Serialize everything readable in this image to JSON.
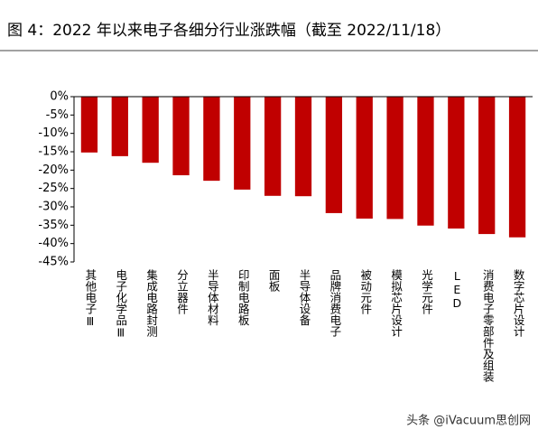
{
  "chart_data": {
    "type": "bar",
    "title": "图 4：2022 年以来电子各细分行业涨跌幅（截至 2022/11/18）",
    "categories": [
      "其他电子Ⅲ",
      "电子化学品Ⅲ",
      "集成电路封测",
      "分立器件",
      "半导体材料",
      "印制电路板",
      "面板",
      "半导体设备",
      "品牌消费电子",
      "被动元件",
      "模拟芯片设计",
      "光学元件",
      "LED",
      "消费电子零部件及组装",
      "数字芯片设计"
    ],
    "values": [
      -15.2,
      -16.2,
      -18.0,
      -21.4,
      -22.9,
      -25.3,
      -27.0,
      -27.1,
      -31.7,
      -33.2,
      -33.3,
      -35.1,
      -35.9,
      -37.4,
      -38.3
    ],
    "color": "#c00000",
    "ylim": [
      -45,
      0
    ],
    "yticks": [
      {
        "value": 0,
        "label": "0%"
      },
      {
        "value": -5,
        "label": "-5%"
      },
      {
        "value": -10,
        "label": "-10%"
      },
      {
        "value": -15,
        "label": "-15%"
      },
      {
        "value": -20,
        "label": "-20%"
      },
      {
        "value": -25,
        "label": "-25%"
      },
      {
        "value": -30,
        "label": "-30%"
      },
      {
        "value": -35,
        "label": "-35%"
      },
      {
        "value": -40,
        "label": "-40%"
      },
      {
        "value": -45,
        "label": "-45%"
      }
    ],
    "grid": false,
    "watermark": "头条 @iVacuum思创网"
  }
}
